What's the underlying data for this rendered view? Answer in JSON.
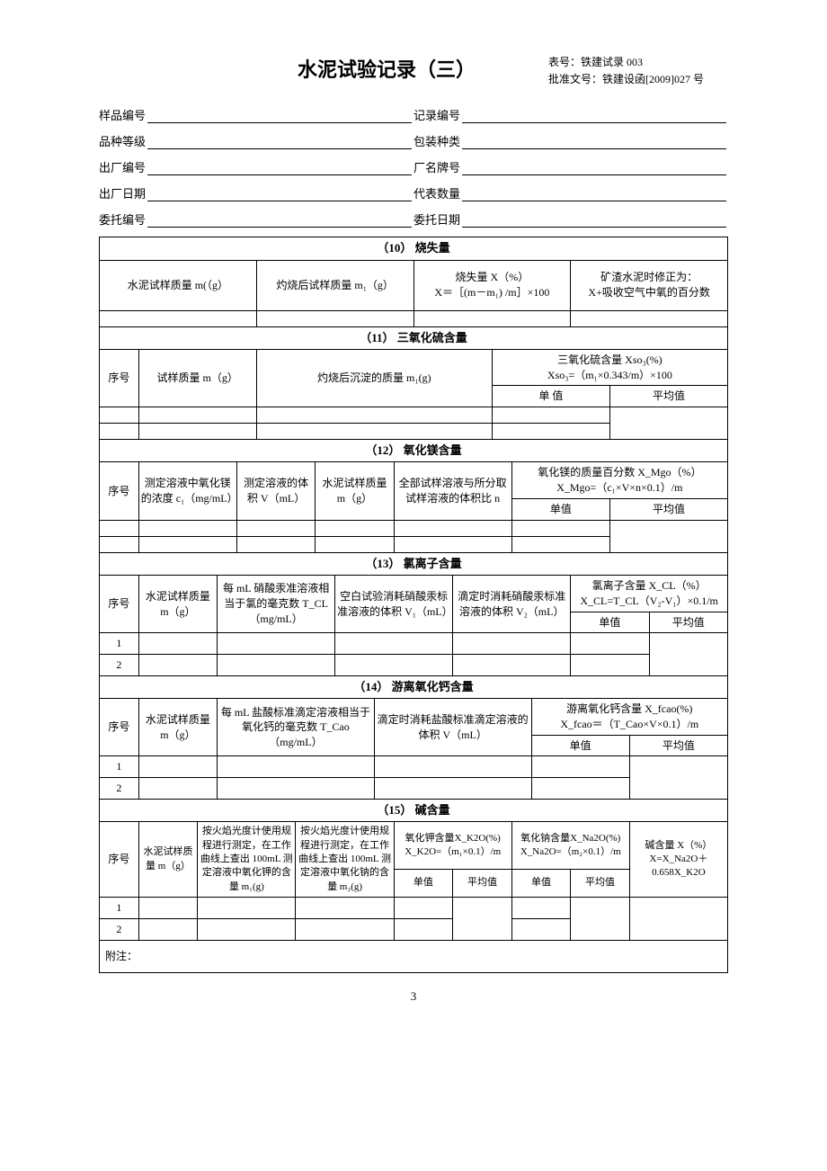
{
  "header": {
    "title": "水泥试验记录（三）",
    "form_no_lbl": "表号：",
    "form_no": "铁建试录 003",
    "approval_lbl": "批准文号：",
    "approval": "铁建设函[2009]027 号"
  },
  "meta": [
    [
      {
        "l": "样品编号",
        "v": ""
      },
      {
        "l": "记录编号",
        "v": ""
      }
    ],
    [
      {
        "l": "品种等级",
        "v": ""
      },
      {
        "l": "包装种类",
        "v": ""
      }
    ],
    [
      {
        "l": "出厂编号",
        "v": ""
      },
      {
        "l": "厂名牌号",
        "v": ""
      }
    ],
    [
      {
        "l": "出厂日期",
        "v": ""
      },
      {
        "l": "代表数量",
        "v": ""
      }
    ],
    [
      {
        "l": "委托编号",
        "v": ""
      },
      {
        "l": "委托日期",
        "v": ""
      }
    ]
  ],
  "s10": {
    "title": "（10）  烧失量",
    "c1": "水泥试样质量 m(（g）",
    "c2": "灼烧后试样质量 m₁（g）",
    "c3": "烧失量 X（%）\nX＝［(m－m₁) /m］×100",
    "c4": "矿渣水泥时修正为：\nX+吸收空气中氧的百分数"
  },
  "s11": {
    "title": "（11）  三氧化硫含量",
    "seq": "序号",
    "c1": "试样质量 m（g）",
    "c2": "灼烧后沉淀的质量 m₁(g)",
    "c3": "三氧化硫含量 Xso₃(%)\nXso₃=（m₁×0.343/m）×100",
    "sv": "单  值",
    "avg": "平均值"
  },
  "s12": {
    "title": "（12）  氧化镁含量",
    "seq": "序号",
    "c1": "测定溶液中氧化镁的浓度 c₁（mg/mL）",
    "c2": "测定溶液的体积 V（mL）",
    "c3": "水泥试样质量 m（g）",
    "c4": "全部试样溶液与所分取试样溶液的体积比 n",
    "c5": "氧化镁的质量百分数 X_Mgo（%）\nX_Mgo=（c₁×V×n×0.1）/m",
    "sv": "单值",
    "avg": "平均值"
  },
  "s13": {
    "title": "（13） 氯离子含量",
    "seq": "序号",
    "c1": "水泥试样质量 m（g）",
    "c2": "每 mL 硝酸汞准溶液相当于氯的毫克数 T_CL（mg/mL）",
    "c3": "空白试验消耗硝酸汞标准溶液的体积 V₁（mL）",
    "c4": "滴定时消耗硝酸汞标准溶液的体积 V₂（mL）",
    "c5": "氯离子含量 X_CL（%）\nX_CL=T_CL（V₂-V₁）×0.1/m",
    "sv": "单值",
    "avg": "平均值",
    "r1": "1",
    "r2": "2"
  },
  "s14": {
    "title": "（14） 游离氧化钙含量",
    "seq": "序号",
    "c1": "水泥试样质量 m（g）",
    "c2": "每 mL 盐酸标准滴定溶液相当于氧化钙的毫克数 T_Cao（mg/mL）",
    "c3": "滴定时消耗盐酸标准滴定溶液的体积 V（mL）",
    "c4": "游离氧化钙含量 X_fcao(%)\nX_fcao＝（T_Cao×V×0.1）/m",
    "sv": "单值",
    "avg": "平均值",
    "r1": "1",
    "r2": "2"
  },
  "s15": {
    "title": "（15） 碱含量",
    "seq": "序号",
    "c1": "水泥试样质量 m（g）",
    "c2": "按火焰光度计使用规程进行测定，在工作曲线上查出 100mL 测定溶液中氧化钾的含量 m₁(g)",
    "c3": "按火焰光度计使用规程进行测定，在工作曲线上查出 100mL 测定溶液中氧化钠的含量 m₂(g)",
    "c4": "氧化钾含量X_K2O(%)\nX_K2O=（m₁×0.1）/m",
    "c5": "氧化钠含量X_Na2O(%)\nX_Na2O=（m₂×0.1）/m",
    "c6": "碱含量 X（%）\nX=X_Na2O＋0.658X_K2O",
    "sv": "单值",
    "avg": "平均值",
    "r1": "1",
    "r2": "2"
  },
  "footnote": "附注：",
  "page": "3"
}
